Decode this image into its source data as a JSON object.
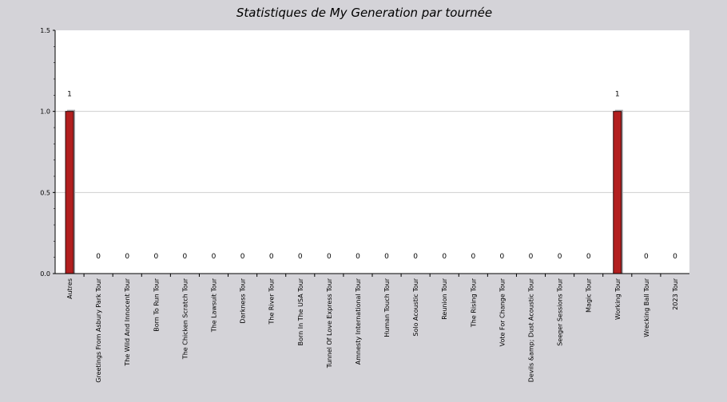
{
  "chart_data": {
    "type": "bar",
    "title": "Statistiques de My Generation par tournée",
    "xlabel": "",
    "ylabel": "",
    "ylim": [
      0,
      1.5
    ],
    "yticks": [
      "0.0",
      "0.5",
      "1.0",
      "1.5"
    ],
    "grid": true,
    "categories": [
      "Autres",
      "Greetings From Asbury Park Tour",
      "The Wild And Innocent Tour",
      "Born To Run Tour",
      "The Chicken Scratch Tour",
      "The Lawsuit Tour",
      "Darkness Tour",
      "The River Tour",
      "Born In The USA Tour",
      "Tunnel Of Love Express Tour",
      "Amnesty International Tour",
      "Human Touch Tour",
      "Solo Acoustic Tour",
      "Reunion Tour",
      "The Rising Tour",
      "Vote For Change Tour",
      "Devils &amp; Dust Acoustic Tour",
      "Seeger Sessions Tour",
      "Magic Tour",
      "Working Tour",
      "Wrecking Ball Tour",
      "2023 Tour"
    ],
    "values": [
      1,
      0,
      0,
      0,
      0,
      0,
      0,
      0,
      0,
      0,
      0,
      0,
      0,
      0,
      0,
      0,
      0,
      0,
      0,
      1,
      0,
      0
    ],
    "data_labels": [
      "1",
      "0",
      "0",
      "0",
      "0",
      "0",
      "0",
      "0",
      "0",
      "0",
      "0",
      "0",
      "0",
      "0",
      "0",
      "0",
      "0",
      "0",
      "0",
      "1",
      "0",
      "0"
    ],
    "colors": {
      "bar": "#b21f1f",
      "bar_border": "#2a0a0a",
      "bar_shadow": "#a9a9ad",
      "plot_background": "#ffffff",
      "page_background": "#d4d3d8",
      "grid": "#cfcfcf",
      "axis": "#000000"
    }
  }
}
